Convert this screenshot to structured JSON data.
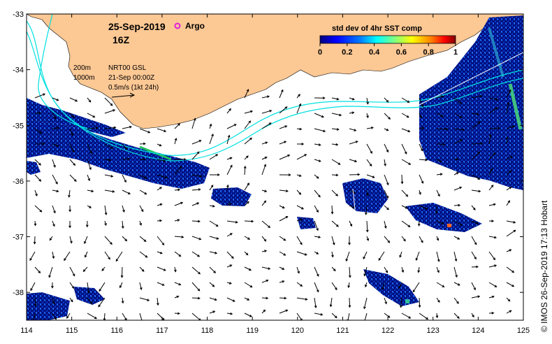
{
  "header": {
    "date": "25-Sep-2019",
    "hour": "16Z",
    "argo_label": "Argo",
    "argo_color": "#e020e0"
  },
  "notes": {
    "contour_200": "200m",
    "contour_1000": "1000m",
    "model": "NRT00 GSL",
    "model_time": "21-Sep 00:00Z",
    "scale_arrow": "0.5m/s (1kt 24h)"
  },
  "colorbar": {
    "title": "std dev of 4hr SST comp",
    "ticks": [
      "0",
      "0.2",
      "0.4",
      "0.6",
      "0.8",
      "1"
    ],
    "colors": [
      "#00007f",
      "#0000ff",
      "#0080ff",
      "#00ffff",
      "#80ff80",
      "#ffff00",
      "#ff8000",
      "#ff0000",
      "#7f0000"
    ]
  },
  "axes": {
    "x_ticks": [
      "114",
      "115",
      "116",
      "117",
      "118",
      "119",
      "120",
      "121",
      "122",
      "123",
      "124",
      "125"
    ],
    "y_ticks": [
      "-33",
      "-34",
      "-35",
      "-36",
      "-37",
      "-38"
    ],
    "xlim": [
      114,
      125
    ],
    "ylim": [
      -38.5,
      -33
    ]
  },
  "colors": {
    "land": "#fcc894",
    "contour": "#00e0e0",
    "data_dark": "#00107f"
  },
  "credit": "© IMOS 26-Sep-2019 17:13 Hobart"
}
